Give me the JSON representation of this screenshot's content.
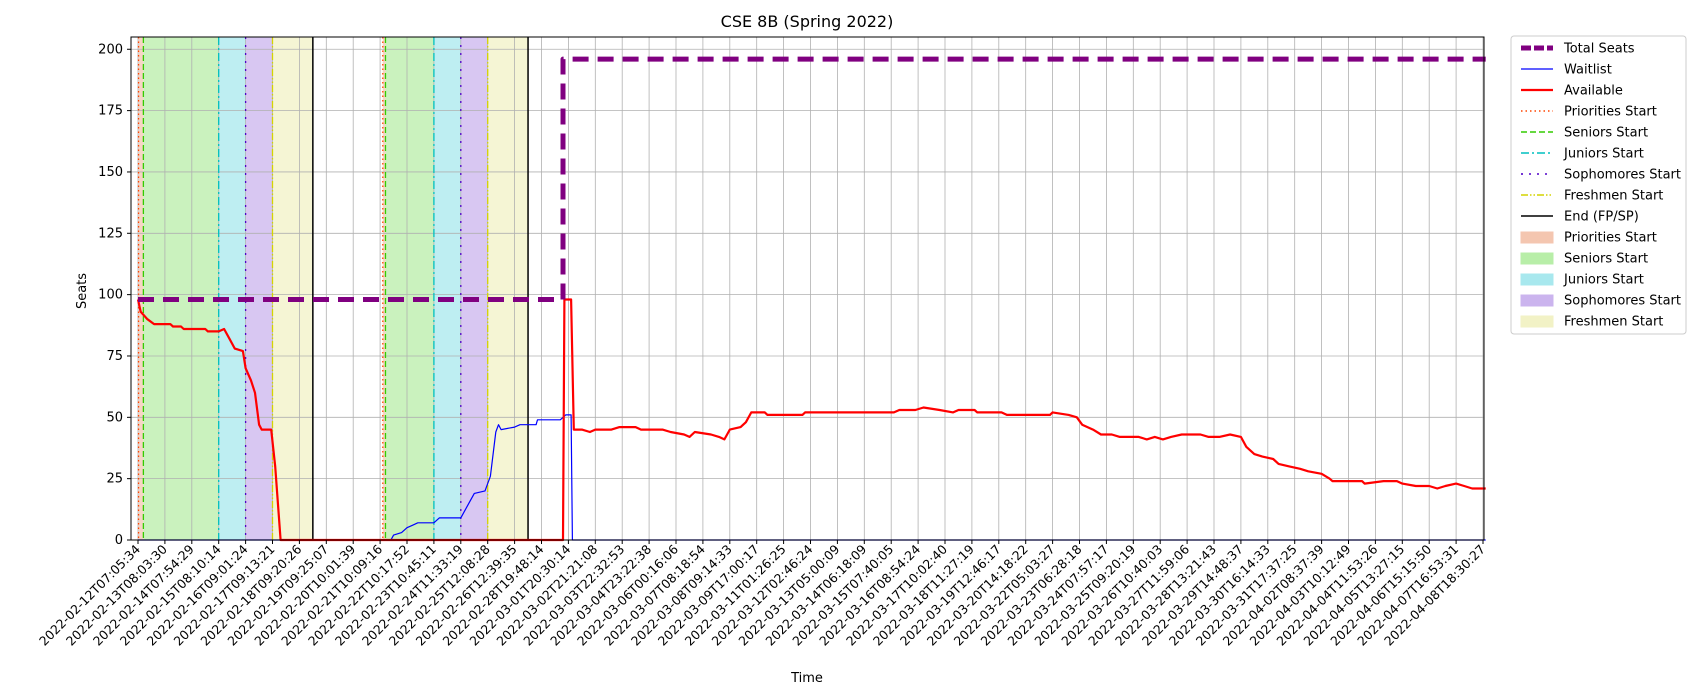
{
  "chart_data": {
    "type": "line",
    "title": "CSE 8B (Spring 2022)",
    "xlabel": "Time",
    "ylabel": "Seats",
    "ylim": [
      0,
      205
    ],
    "yticks": [
      0,
      25,
      50,
      75,
      100,
      125,
      150,
      175,
      200
    ],
    "grid": true,
    "legend_placement": "outside-right",
    "x_tick_labels": [
      "2022-02-12T07:05:34",
      "2022-02-13T08:03:30",
      "2022-02-14T07:54:29",
      "2022-02-15T08:10:14",
      "2022-02-16T09:01:24",
      "2022-02-17T09:13:21",
      "2022-02-18T09:20:26",
      "2022-02-19T09:25:07",
      "2022-02-20T10:01:39",
      "2022-02-21T10:09:16",
      "2022-02-22T10:17:52",
      "2022-02-23T10:45:11",
      "2022-02-24T11:33:19",
      "2022-02-25T12:08:28",
      "2022-02-26T12:39:35",
      "2022-02-28T19:48:14",
      "2022-03-01T20:30:14",
      "2022-03-02T21:21:08",
      "2022-03-03T22:32:53",
      "2022-03-04T23:22:38",
      "2022-03-06T00:16:06",
      "2022-03-07T08:18:54",
      "2022-03-08T09:14:33",
      "2022-03-09T17:00:17",
      "2022-03-11T01:26:25",
      "2022-03-12T02:46:24",
      "2022-03-13T05:00:09",
      "2022-03-14T06:18:09",
      "2022-03-15T07:40:05",
      "2022-03-16T08:54:24",
      "2022-03-17T10:02:40",
      "2022-03-18T11:27:19",
      "2022-03-19T12:46:17",
      "2022-03-20T14:18:22",
      "2022-03-22T05:03:27",
      "2022-03-23T06:28:18",
      "2022-03-24T07:57:17",
      "2022-03-25T09:20:19",
      "2022-03-26T10:40:03",
      "2022-03-27T11:59:06",
      "2022-03-28T13:21:43",
      "2022-03-29T14:48:37",
      "2022-03-30T16:14:33",
      "2022-03-31T17:37:25",
      "2022-04-02T08:37:39",
      "2022-04-03T10:12:49",
      "2022-04-04T11:53:26",
      "2022-04-05T13:27:15",
      "2022-04-06T15:15:50",
      "2022-04-07T16:53:31",
      "2022-04-08T18:30:27"
    ],
    "x_range": [
      0,
      50.1
    ],
    "series": [
      {
        "name": "Total Seats",
        "color": "#800080",
        "style": "dashed-thick",
        "points": [
          [
            0,
            98
          ],
          [
            15.8,
            98
          ],
          [
            15.8,
            196
          ],
          [
            50.1,
            196
          ]
        ]
      },
      {
        "name": "Waitlist",
        "color": "#0000ff",
        "style": "solid-thin",
        "points": [
          [
            0,
            0
          ],
          [
            9.4,
            0
          ],
          [
            9.5,
            2
          ],
          [
            9.8,
            3
          ],
          [
            10.0,
            5
          ],
          [
            10.2,
            6
          ],
          [
            10.4,
            7
          ],
          [
            11.0,
            7
          ],
          [
            11.2,
            9
          ],
          [
            12.0,
            9
          ],
          [
            12.3,
            15
          ],
          [
            12.5,
            19
          ],
          [
            12.9,
            20
          ],
          [
            13.1,
            26
          ],
          [
            13.3,
            44
          ],
          [
            13.4,
            47
          ],
          [
            13.5,
            45
          ],
          [
            14.0,
            46
          ],
          [
            14.2,
            47
          ],
          [
            14.8,
            47
          ],
          [
            14.85,
            49
          ],
          [
            15.7,
            49
          ],
          [
            15.9,
            51
          ],
          [
            16.1,
            51
          ],
          [
            16.15,
            0
          ],
          [
            50.1,
            0
          ]
        ]
      },
      {
        "name": "Available",
        "color": "#ff0000",
        "style": "solid-thick",
        "points": [
          [
            0,
            98
          ],
          [
            0.1,
            93
          ],
          [
            0.35,
            90
          ],
          [
            0.6,
            88
          ],
          [
            1.2,
            88
          ],
          [
            1.3,
            87
          ],
          [
            1.6,
            87
          ],
          [
            1.7,
            86
          ],
          [
            2.5,
            86
          ],
          [
            2.6,
            85
          ],
          [
            3.0,
            85
          ],
          [
            3.2,
            86
          ],
          [
            3.4,
            82
          ],
          [
            3.6,
            78
          ],
          [
            3.9,
            77
          ],
          [
            4.0,
            70
          ],
          [
            4.2,
            65
          ],
          [
            4.35,
            60
          ],
          [
            4.5,
            47
          ],
          [
            4.6,
            45
          ],
          [
            4.95,
            45
          ],
          [
            5.1,
            30
          ],
          [
            5.2,
            15
          ],
          [
            5.3,
            0
          ],
          [
            15.8,
            0
          ],
          [
            15.85,
            98
          ],
          [
            16.1,
            98
          ],
          [
            16.2,
            45
          ],
          [
            16.5,
            45
          ],
          [
            16.8,
            44
          ],
          [
            17.0,
            45
          ],
          [
            17.6,
            45
          ],
          [
            17.9,
            46
          ],
          [
            18.5,
            46
          ],
          [
            18.7,
            45
          ],
          [
            19.5,
            45
          ],
          [
            19.8,
            44
          ],
          [
            20.3,
            43
          ],
          [
            20.5,
            42
          ],
          [
            20.7,
            44
          ],
          [
            21.3,
            43
          ],
          [
            21.6,
            42
          ],
          [
            21.8,
            41
          ],
          [
            22.0,
            45
          ],
          [
            22.4,
            46
          ],
          [
            22.6,
            48
          ],
          [
            22.8,
            52
          ],
          [
            23.3,
            52
          ],
          [
            23.4,
            51
          ],
          [
            24.7,
            51
          ],
          [
            24.8,
            52
          ],
          [
            28.1,
            52
          ],
          [
            28.3,
            53
          ],
          [
            28.9,
            53
          ],
          [
            29.2,
            54
          ],
          [
            29.8,
            53
          ],
          [
            30.3,
            52
          ],
          [
            30.5,
            53
          ],
          [
            31.1,
            53
          ],
          [
            31.2,
            52
          ],
          [
            32.1,
            52
          ],
          [
            32.3,
            51
          ],
          [
            33.9,
            51
          ],
          [
            34.0,
            52
          ],
          [
            34.6,
            51
          ],
          [
            34.9,
            50
          ],
          [
            35.1,
            47
          ],
          [
            35.5,
            45
          ],
          [
            35.8,
            43
          ],
          [
            36.2,
            43
          ],
          [
            36.5,
            42
          ],
          [
            37.2,
            42
          ],
          [
            37.5,
            41
          ],
          [
            37.8,
            42
          ],
          [
            38.1,
            41
          ],
          [
            38.4,
            42
          ],
          [
            38.8,
            43
          ],
          [
            39.5,
            43
          ],
          [
            39.8,
            42
          ],
          [
            40.2,
            42
          ],
          [
            40.6,
            43
          ],
          [
            41.0,
            42
          ],
          [
            41.2,
            38
          ],
          [
            41.5,
            35
          ],
          [
            41.8,
            34
          ],
          [
            42.2,
            33
          ],
          [
            42.4,
            31
          ],
          [
            42.8,
            30
          ],
          [
            43.2,
            29
          ],
          [
            43.5,
            28
          ],
          [
            44.0,
            27
          ],
          [
            44.3,
            25
          ],
          [
            44.4,
            24
          ],
          [
            45.5,
            24
          ],
          [
            45.6,
            23
          ],
          [
            46.3,
            24
          ],
          [
            46.8,
            24
          ],
          [
            47.0,
            23
          ],
          [
            47.5,
            22
          ],
          [
            48.0,
            22
          ],
          [
            48.3,
            21
          ],
          [
            48.6,
            22
          ],
          [
            49.0,
            23
          ],
          [
            49.3,
            22
          ],
          [
            49.6,
            21
          ],
          [
            50.1,
            21
          ]
        ]
      }
    ],
    "markers": [
      {
        "name": "Priorities Start",
        "color": "#ff4500",
        "style": "dotted",
        "x": [
          0.02,
          9.1
        ]
      },
      {
        "name": "Seniors Start",
        "color": "#33cc00",
        "style": "dashed",
        "x": [
          0.2,
          9.2
        ]
      },
      {
        "name": "Juniors Start",
        "color": "#00bfbf",
        "style": "dashdot",
        "x": [
          3.0,
          11.0
        ]
      },
      {
        "name": "Sophomores Start",
        "color": "#5000c8",
        "style": "loosedot",
        "x": [
          4.0,
          12.0
        ]
      },
      {
        "name": "Freshmen Start",
        "color": "#d4d400",
        "style": "dashdotdot",
        "x": [
          5.0,
          13.0
        ]
      },
      {
        "name": "End (FP/SP)",
        "color": "#000000",
        "style": "solid",
        "x": [
          6.5,
          14.5
        ]
      }
    ],
    "regions": [
      {
        "name": "Priorities Start",
        "color": "#f4c6b0",
        "spans": [
          [
            0.02,
            0.2
          ],
          [
            9.1,
            9.2
          ]
        ]
      },
      {
        "name": "Seniors Start",
        "color": "#b8eea8",
        "spans": [
          [
            0.2,
            3.0
          ],
          [
            9.2,
            11.0
          ]
        ]
      },
      {
        "name": "Juniors Start",
        "color": "#a8e8ee",
        "spans": [
          [
            3.0,
            4.0
          ],
          [
            11.0,
            12.0
          ]
        ]
      },
      {
        "name": "Sophomores Start",
        "color": "#cbb4ee",
        "spans": [
          [
            4.0,
            5.0
          ],
          [
            12.0,
            13.0
          ]
        ]
      },
      {
        "name": "Freshmen Start",
        "color": "#f2f2c6",
        "spans": [
          [
            5.0,
            6.5
          ],
          [
            13.0,
            14.5
          ]
        ]
      }
    ],
    "legend": [
      {
        "label": "Total Seats",
        "kind": "line",
        "color": "#800080",
        "style": "dashed-thick"
      },
      {
        "label": "Waitlist",
        "kind": "line",
        "color": "#0000ff",
        "style": "solid-thin"
      },
      {
        "label": "Available",
        "kind": "line",
        "color": "#ff0000",
        "style": "solid-thick"
      },
      {
        "label": "Priorities Start",
        "kind": "line",
        "color": "#ff4500",
        "style": "dotted"
      },
      {
        "label": "Seniors Start",
        "kind": "line",
        "color": "#33cc00",
        "style": "dashed"
      },
      {
        "label": "Juniors Start",
        "kind": "line",
        "color": "#00bfbf",
        "style": "dashdot"
      },
      {
        "label": "Sophomores Start",
        "kind": "line",
        "color": "#5000c8",
        "style": "loosedot"
      },
      {
        "label": "Freshmen Start",
        "kind": "line",
        "color": "#d4d400",
        "style": "dashdotdot"
      },
      {
        "label": "End (FP/SP)",
        "kind": "line",
        "color": "#000000",
        "style": "solid"
      },
      {
        "label": "Priorities Start",
        "kind": "patch",
        "color": "#f4c6b0"
      },
      {
        "label": "Seniors Start",
        "kind": "patch",
        "color": "#b8eea8"
      },
      {
        "label": "Juniors Start",
        "kind": "patch",
        "color": "#a8e8ee"
      },
      {
        "label": "Sophomores Start",
        "kind": "patch",
        "color": "#cbb4ee"
      },
      {
        "label": "Freshmen Start",
        "kind": "patch",
        "color": "#f2f2c6"
      }
    ]
  }
}
